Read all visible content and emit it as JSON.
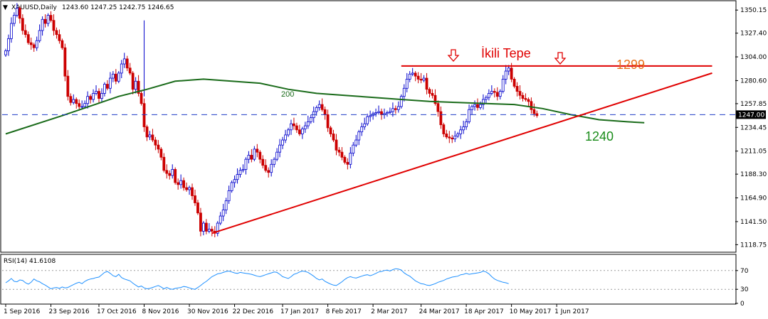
{
  "window": {
    "menu_marker": "▼",
    "title": "XAUUSD,Daily",
    "ohlc": "1243.60 1247.25 1242.75 1246.65"
  },
  "colors": {
    "bull": "#0000cc",
    "bear": "#cc0000",
    "ma": "#1a6b1a",
    "trend": "#e00000",
    "price_line": "#1e3cc8",
    "rsi": "#1e90ff",
    "ref_label": "#e8701a",
    "grid_dash": "#9b9b9b"
  },
  "chart_data": [
    {
      "type": "candlestick",
      "symbol": "XAUUSD",
      "timeframe": "Daily",
      "ohlc_current": {
        "open": 1243.6,
        "high": 1247.25,
        "low": 1242.75,
        "close": 1246.65
      },
      "ylim": [
        1112,
        1358
      ],
      "y_ticks": [
        "1350.15",
        "1327.40",
        "1304.00",
        "1280.60",
        "1257.85",
        "1234.45",
        "1211.05",
        "1188.30",
        "1164.90",
        "1141.50",
        "1118.75"
      ],
      "x_ticks": [
        "1 Sep 2016",
        "23 Sep 2016",
        "17 Oct 2016",
        "8 Nov 2016",
        "30 Nov 2016",
        "22 Dec 2016",
        "17 Jan 2017",
        "8 Feb 2017",
        "2 Mar 2017",
        "24 Mar 2017",
        "18 Apr 2017",
        "10 May 2017",
        "1 Jun 2017"
      ],
      "current_price_label": "1247.00",
      "closes": [
        1310,
        1322,
        1337,
        1345,
        1352,
        1342,
        1330,
        1326,
        1318,
        1316,
        1313,
        1320,
        1330,
        1341,
        1337,
        1345,
        1340,
        1330,
        1326,
        1320,
        1313,
        1285,
        1265,
        1259,
        1262,
        1258,
        1255,
        1255,
        1258,
        1265,
        1262,
        1268,
        1270,
        1263,
        1268,
        1277,
        1273,
        1283,
        1287,
        1280,
        1288,
        1297,
        1302,
        1293,
        1288,
        1272,
        1280,
        1268,
        1258,
        1235,
        1225,
        1227,
        1222,
        1217,
        1213,
        1205,
        1192,
        1189,
        1187,
        1193,
        1180,
        1178,
        1182,
        1175,
        1173,
        1175,
        1167,
        1160,
        1150,
        1132,
        1140,
        1132,
        1134,
        1132,
        1130,
        1140,
        1147,
        1153,
        1162,
        1172,
        1180,
        1183,
        1188,
        1192,
        1193,
        1203,
        1207,
        1203,
        1213,
        1210,
        1203,
        1197,
        1192,
        1190,
        1198,
        1203,
        1210,
        1217,
        1222,
        1227,
        1232,
        1238,
        1236,
        1232,
        1228,
        1233,
        1236,
        1240,
        1244,
        1250,
        1254,
        1257,
        1252,
        1247,
        1234,
        1228,
        1222,
        1212,
        1210,
        1205,
        1200,
        1198,
        1209,
        1217,
        1222,
        1230,
        1235,
        1238,
        1245,
        1246,
        1248,
        1249,
        1250,
        1247,
        1248,
        1249,
        1250,
        1253,
        1252,
        1255,
        1265,
        1273,
        1282,
        1287,
        1288,
        1285,
        1282,
        1281,
        1283,
        1272,
        1268,
        1266,
        1258,
        1250,
        1237,
        1228,
        1225,
        1224,
        1223,
        1226,
        1228,
        1232,
        1235,
        1240,
        1252,
        1255,
        1257,
        1254,
        1257,
        1262,
        1264,
        1268,
        1270,
        1269,
        1265,
        1270,
        1282,
        1290,
        1293,
        1282,
        1275,
        1270,
        1266,
        1263,
        1262,
        1260,
        1252,
        1248,
        1246
      ],
      "ma200": {
        "name": "200",
        "points": [
          [
            0,
            1228
          ],
          [
            20,
            1246
          ],
          [
            40,
            1265
          ],
          [
            50,
            1272
          ],
          [
            60,
            1280
          ],
          [
            70,
            1282
          ],
          [
            80,
            1280
          ],
          [
            90,
            1278
          ],
          [
            100,
            1272
          ],
          [
            110,
            1268
          ],
          [
            120,
            1266
          ],
          [
            130,
            1264
          ],
          [
            140,
            1262
          ],
          [
            150,
            1260
          ],
          [
            160,
            1259
          ],
          [
            170,
            1258
          ],
          [
            180,
            1257
          ],
          [
            190,
            1253
          ],
          [
            200,
            1247
          ],
          [
            210,
            1242
          ],
          [
            220,
            1240
          ],
          [
            226,
            1239
          ]
        ]
      },
      "support_line": {
        "from": [
          73,
          1130
        ],
        "to": [
          250,
          1288
        ]
      },
      "resistance_line": {
        "from": [
          140,
          1295
        ],
        "to": [
          250,
          1295
        ]
      },
      "annotations": {
        "pattern": "İkili Tepe",
        "resistance": "1299",
        "ma_value": "1240"
      }
    },
    {
      "type": "line",
      "title": "RSI(14) 41.6108",
      "ylim": [
        0,
        100
      ],
      "y_ticks": [
        "70",
        "30",
        "0"
      ],
      "levels": [
        70,
        30
      ],
      "values": [
        44,
        48,
        53,
        47,
        46,
        50,
        49,
        44,
        41,
        45,
        52,
        48,
        46,
        42,
        39,
        35,
        31,
        33,
        34,
        32,
        35,
        33,
        34,
        37,
        40,
        43,
        45,
        42,
        47,
        50,
        52,
        53,
        55,
        56,
        61,
        66,
        68,
        64,
        59,
        57,
        62,
        55,
        52,
        50,
        48,
        43,
        39,
        35,
        37,
        33,
        31,
        32,
        34,
        36,
        38,
        35,
        31,
        34,
        31,
        30,
        32,
        33,
        34,
        36,
        35,
        33,
        31,
        30,
        34,
        38,
        43,
        47,
        52,
        57,
        60,
        63,
        64,
        66,
        68,
        69,
        67,
        65,
        64,
        66,
        65,
        64,
        63,
        62,
        60,
        58,
        57,
        59,
        61,
        63,
        65,
        67,
        66,
        62,
        57,
        55,
        53,
        57,
        62,
        64,
        67,
        69,
        68,
        66,
        62,
        58,
        53,
        50,
        52,
        47,
        44,
        41,
        39,
        38,
        42,
        46,
        51,
        55,
        57,
        55,
        54,
        56,
        58,
        60,
        61,
        59,
        61,
        64,
        67,
        68,
        70,
        71,
        69,
        72,
        74,
        73,
        71,
        65,
        61,
        58,
        53,
        48,
        45,
        42,
        41,
        39,
        38,
        40,
        42,
        45,
        47,
        49,
        52,
        54,
        56,
        57,
        58,
        61,
        62,
        64,
        62,
        63,
        64,
        65,
        66,
        69,
        67,
        63,
        57,
        52,
        49,
        47,
        45,
        44,
        42
      ],
      "values_note_free": ""
    }
  ]
}
